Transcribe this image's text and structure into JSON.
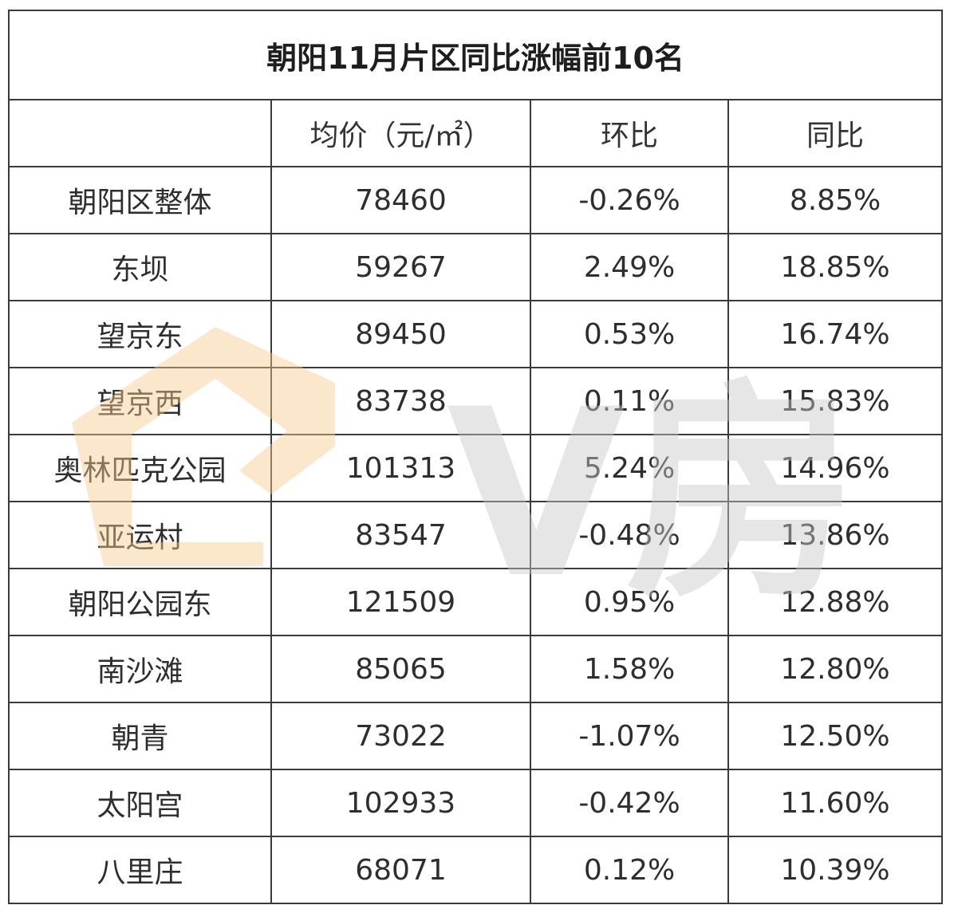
{
  "chart_data": {
    "type": "table",
    "title": "朝阳11月片区同比涨幅前10名",
    "columns": [
      "",
      "均价（元/㎡）",
      "环比",
      "同比"
    ],
    "rows": [
      {
        "name": "朝阳区整体",
        "price": "78460",
        "mom": "-0.26%",
        "yoy": "8.85%"
      },
      {
        "name": "东坝",
        "price": "59267",
        "mom": "2.49%",
        "yoy": "18.85%"
      },
      {
        "name": "望京东",
        "price": "89450",
        "mom": "0.53%",
        "yoy": "16.74%"
      },
      {
        "name": "望京西",
        "price": "83738",
        "mom": "0.11%",
        "yoy": "15.83%"
      },
      {
        "name": "奥林匹克公园",
        "price": "101313",
        "mom": "5.24%",
        "yoy": "14.96%"
      },
      {
        "name": "亚运村",
        "price": "83547",
        "mom": "-0.48%",
        "yoy": "13.86%"
      },
      {
        "name": "朝阳公园东",
        "price": "121509",
        "mom": "0.95%",
        "yoy": "12.88%"
      },
      {
        "name": "南沙滩",
        "price": "85065",
        "mom": "1.58%",
        "yoy": "12.80%"
      },
      {
        "name": "朝青",
        "price": "73022",
        "mom": "-1.07%",
        "yoy": "12.50%"
      },
      {
        "name": "太阳宫",
        "price": "102933",
        "mom": "-0.42%",
        "yoy": "11.60%"
      },
      {
        "name": "八里庄",
        "price": "68071",
        "mom": "0.12%",
        "yoy": "10.39%"
      }
    ]
  },
  "watermark": {
    "text": "V房",
    "logo_color": "#f7c98c",
    "text_color": "#c9c9c9"
  },
  "colors": {
    "border": "#3a3a3a",
    "text": "#2e2e2e"
  }
}
